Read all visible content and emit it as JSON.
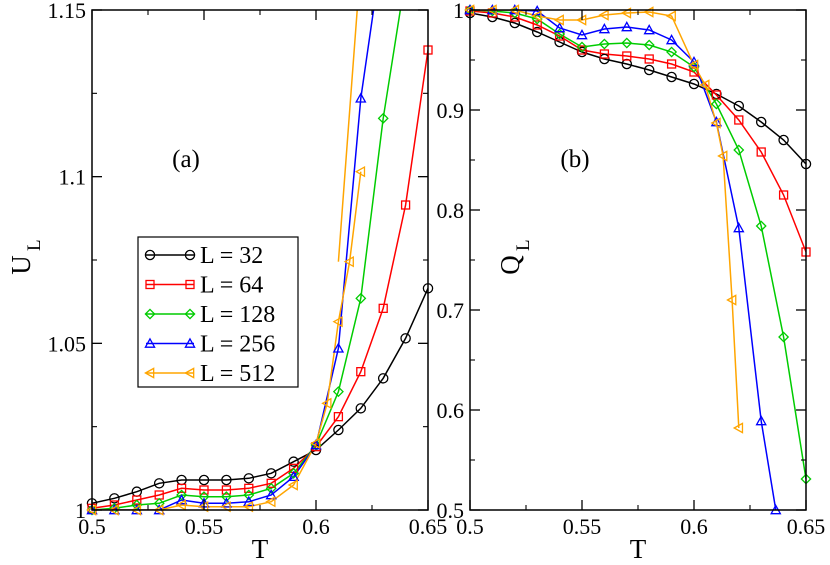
{
  "chart_data": [
    {
      "type": "line",
      "panel_label": "(a)",
      "xlabel": "T",
      "ylabel": "U",
      "ylabel_sub": "L",
      "xlim": [
        0.5,
        0.65
      ],
      "ylim": [
        1.0,
        1.15
      ],
      "xticks": [
        0.5,
        0.55,
        0.6,
        0.65
      ],
      "xtick_labels": [
        "0.5",
        "0.55",
        "0.6",
        "0.65"
      ],
      "yticks": [
        1.0,
        1.05,
        1.1,
        1.15
      ],
      "ytick_labels": [
        "1",
        "1.05",
        "1.1",
        "1.15"
      ],
      "legend_position": "center-left",
      "series": [
        {
          "name": "L = 32",
          "color": "#000000",
          "marker": "circle",
          "x": [
            0.5,
            0.51,
            0.52,
            0.53,
            0.54,
            0.55,
            0.56,
            0.57,
            0.58,
            0.59,
            0.6,
            0.61,
            0.62,
            0.63,
            0.64,
            0.65
          ],
          "y": [
            1.002,
            1.0035,
            1.0055,
            1.008,
            1.009,
            1.009,
            1.009,
            1.0095,
            1.011,
            1.0145,
            1.018,
            1.024,
            1.0305,
            1.0395,
            1.0515,
            1.0665
          ]
        },
        {
          "name": "L = 64",
          "color": "#ff0000",
          "marker": "square",
          "x": [
            0.5,
            0.51,
            0.52,
            0.53,
            0.54,
            0.55,
            0.56,
            0.57,
            0.58,
            0.59,
            0.6,
            0.61,
            0.62,
            0.63,
            0.64,
            0.65
          ],
          "y": [
            1.0005,
            1.0015,
            1.003,
            1.0045,
            1.0065,
            1.006,
            1.006,
            1.0065,
            1.008,
            1.0125,
            1.019,
            1.028,
            1.0415,
            1.0605,
            1.0915,
            1.138
          ]
        },
        {
          "name": "L = 128",
          "color": "#00cc00",
          "marker": "diamond",
          "x": [
            0.5,
            0.51,
            0.52,
            0.53,
            0.54,
            0.55,
            0.56,
            0.57,
            0.58,
            0.59,
            0.6,
            0.61,
            0.62,
            0.63,
            0.64
          ],
          "y": [
            1.0,
            1.0005,
            1.0015,
            1.002,
            1.0045,
            1.004,
            1.004,
            1.0045,
            1.0065,
            1.011,
            1.0195,
            1.0355,
            1.0635,
            1.1175,
            1.16
          ]
        },
        {
          "name": "L = 256",
          "color": "#0000ff",
          "marker": "triangle-up",
          "x": [
            0.5,
            0.51,
            0.52,
            0.53,
            0.54,
            0.55,
            0.56,
            0.57,
            0.58,
            0.59,
            0.6,
            0.61,
            0.62,
            0.63
          ],
          "y": [
            1.0,
            1.0,
            1.0,
            1.0,
            1.003,
            1.002,
            1.002,
            1.0025,
            1.0045,
            1.01,
            1.0195,
            1.0485,
            1.1235,
            1.17
          ]
        },
        {
          "name": "L = 512",
          "color": "#ffa500",
          "marker": "triangle-left",
          "x": [
            0.5,
            0.51,
            0.52,
            0.53,
            0.54,
            0.55,
            0.56,
            0.57,
            0.58,
            0.59,
            0.6,
            0.605,
            0.61,
            0.615,
            0.62
          ],
          "y": [
            1.0,
            1.0,
            1.0,
            1.0,
            1.0015,
            1.001,
            1.001,
            1.001,
            1.0025,
            1.0075,
            1.02,
            1.032,
            1.0565,
            1.0745,
            1.1015
          ]
        }
      ],
      "extra_segments": [
        {
          "color": "#ffa500",
          "x": [
            0.61,
            0.613,
            0.6195
          ],
          "y": [
            1.0745,
            1.1015,
            1.16
          ]
        }
      ]
    },
    {
      "type": "line",
      "panel_label": "(b)",
      "xlabel": "T",
      "ylabel": "Q",
      "ylabel_sub": "L",
      "xlim": [
        0.5,
        0.65
      ],
      "ylim": [
        0.5,
        1.0
      ],
      "xticks": [
        0.5,
        0.55,
        0.6,
        0.65
      ],
      "xtick_labels": [
        "0.5",
        "0.55",
        "0.6",
        "0.65"
      ],
      "yticks": [
        0.5,
        0.6,
        0.7,
        0.8,
        0.9,
        1.0
      ],
      "ytick_labels": [
        "0.5",
        "0.6",
        "0.7",
        "0.8",
        "0.9",
        "1"
      ],
      "series": [
        {
          "name": "L = 32",
          "color": "#000000",
          "marker": "circle",
          "x": [
            0.5,
            0.51,
            0.52,
            0.53,
            0.54,
            0.55,
            0.56,
            0.57,
            0.58,
            0.59,
            0.6,
            0.61,
            0.62,
            0.63,
            0.64,
            0.65
          ],
          "y": [
            0.997,
            0.993,
            0.987,
            0.978,
            0.968,
            0.958,
            0.951,
            0.946,
            0.94,
            0.933,
            0.926,
            0.916,
            0.904,
            0.888,
            0.87,
            0.846
          ]
        },
        {
          "name": "L = 64",
          "color": "#ff0000",
          "marker": "square",
          "x": [
            0.5,
            0.51,
            0.52,
            0.53,
            0.54,
            0.55,
            0.56,
            0.57,
            0.58,
            0.59,
            0.6,
            0.61,
            0.62,
            0.63,
            0.64,
            0.65
          ],
          "y": [
            0.999,
            0.997,
            0.993,
            0.985,
            0.974,
            0.96,
            0.956,
            0.954,
            0.951,
            0.946,
            0.938,
            0.915,
            0.89,
            0.858,
            0.815,
            0.758
          ]
        },
        {
          "name": "L = 128",
          "color": "#00cc00",
          "marker": "diamond",
          "x": [
            0.5,
            0.51,
            0.52,
            0.53,
            0.54,
            0.55,
            0.56,
            0.57,
            0.58,
            0.59,
            0.6,
            0.61,
            0.62,
            0.63,
            0.64,
            0.65
          ],
          "y": [
            1.0,
            0.999,
            0.997,
            0.991,
            0.976,
            0.963,
            0.966,
            0.967,
            0.965,
            0.958,
            0.943,
            0.906,
            0.86,
            0.784,
            0.673,
            0.531
          ]
        },
        {
          "name": "L = 256",
          "color": "#0000ff",
          "marker": "triangle-up",
          "x": [
            0.5,
            0.51,
            0.52,
            0.53,
            0.54,
            0.55,
            0.56,
            0.57,
            0.58,
            0.59,
            0.6,
            0.61,
            0.62,
            0.63,
            0.6365
          ],
          "y": [
            1.0,
            1.0,
            1.0,
            0.999,
            0.982,
            0.975,
            0.981,
            0.983,
            0.98,
            0.97,
            0.948,
            0.888,
            0.782,
            0.589,
            0.5
          ]
        },
        {
          "name": "L = 512",
          "color": "#ffa500",
          "marker": "triangle-left",
          "x": [
            0.5,
            0.51,
            0.52,
            0.53,
            0.54,
            0.55,
            0.56,
            0.57,
            0.58,
            0.59,
            0.6,
            0.605,
            0.61,
            0.613,
            0.617,
            0.62
          ],
          "y": [
            1.0,
            1.0,
            1.0,
            0.994,
            0.99,
            0.99,
            0.995,
            0.997,
            0.998,
            0.994,
            0.945,
            0.925,
            0.887,
            0.854,
            0.71,
            0.582
          ]
        }
      ]
    }
  ]
}
